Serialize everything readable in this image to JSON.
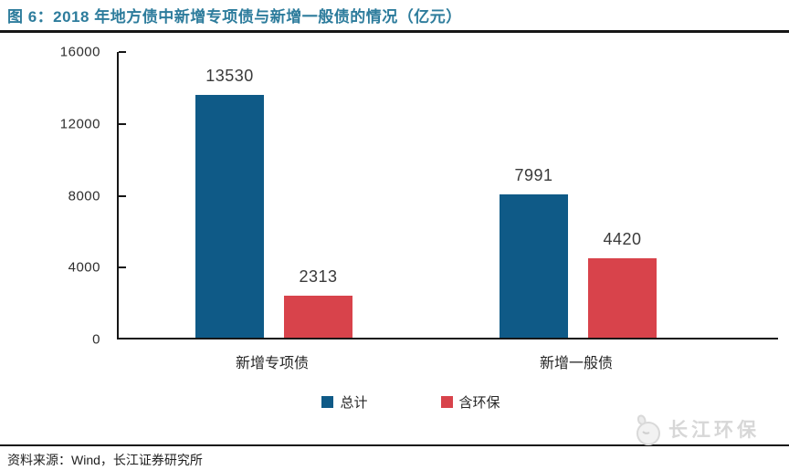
{
  "figure": {
    "title": "图 6：2018 年地方债中新增专项债与新增一般债的情况（亿元）",
    "source_note": "资料来源：Wind，长江证券研究所"
  },
  "watermark": {
    "label": "长江环保",
    "icon": "bird-logo-icon"
  },
  "colors": {
    "title": "#2d7c9c",
    "series_total": "#0f5a87",
    "series_env": "#d8434b",
    "axis": "#161616",
    "watermark_gray": "#d7d7d7"
  },
  "chart_data": {
    "type": "bar",
    "categories": [
      "新增专项债",
      "新增一般债"
    ],
    "series": [
      {
        "name": "总计",
        "color": "#0f5a87",
        "values": [
          13530,
          7991
        ]
      },
      {
        "name": "含环保",
        "color": "#d8434b",
        "values": [
          2313,
          4420
        ]
      }
    ],
    "title": "2018 年地方债中新增专项债与新增一般债的情况（亿元）",
    "xlabel": "",
    "ylabel": "",
    "ylim": [
      0,
      16000
    ],
    "yticks": [
      0,
      4000,
      8000,
      12000,
      16000
    ],
    "grid": false,
    "legend_position": "bottom",
    "value_labels": true
  }
}
